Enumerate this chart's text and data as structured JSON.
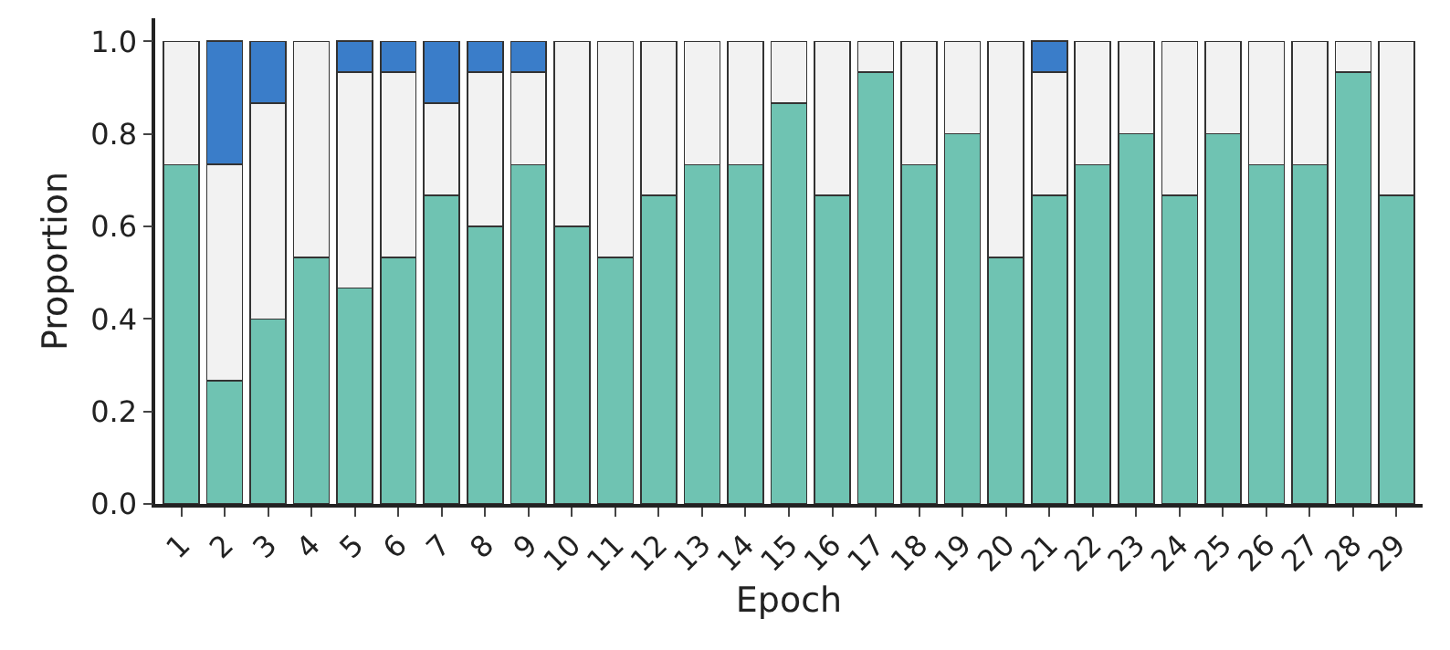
{
  "chart_data": {
    "type": "bar",
    "stacked": true,
    "xlabel": "Epoch",
    "ylabel": "Proportion",
    "categories": [
      "1",
      "2",
      "3",
      "4",
      "5",
      "6",
      "7",
      "8",
      "9",
      "10",
      "11",
      "12",
      "13",
      "14",
      "15",
      "16",
      "17",
      "18",
      "19",
      "20",
      "21",
      "22",
      "23",
      "24",
      "25",
      "26",
      "27",
      "28",
      "29"
    ],
    "series": [
      {
        "color": "#6fc3b2",
        "values": [
          0.733,
          0.267,
          0.4,
          0.533,
          0.467,
          0.533,
          0.667,
          0.6,
          0.733,
          0.6,
          0.533,
          0.667,
          0.733,
          0.733,
          0.867,
          0.667,
          0.933,
          0.733,
          0.8,
          0.533,
          0.667,
          0.733,
          0.8,
          0.667,
          0.8,
          0.733,
          0.733,
          0.933,
          0.667
        ]
      },
      {
        "color": "#f2f2f2",
        "values": [
          0.267,
          0.467,
          0.467,
          0.467,
          0.467,
          0.4,
          0.2,
          0.333,
          0.2,
          0.4,
          0.467,
          0.333,
          0.267,
          0.267,
          0.133,
          0.333,
          0.067,
          0.267,
          0.2,
          0.467,
          0.267,
          0.267,
          0.2,
          0.333,
          0.2,
          0.267,
          0.267,
          0.067,
          0.333
        ]
      },
      {
        "color": "#3a7dc9",
        "values": [
          null,
          0.267,
          0.133,
          null,
          0.067,
          0.067,
          0.133,
          0.067,
          0.067,
          null,
          null,
          null,
          null,
          null,
          null,
          null,
          null,
          null,
          null,
          null,
          0.067,
          null,
          null,
          null,
          null,
          null,
          null,
          null,
          null
        ]
      }
    ],
    "ylim": [
      0,
      1.05
    ],
    "yticks": [
      {
        "value": 0,
        "label": "0.0"
      },
      {
        "value": 0.2,
        "label": "0.2"
      },
      {
        "value": 0.4,
        "label": "0.4"
      },
      {
        "value": 0.6,
        "label": "0.6"
      },
      {
        "value": 0.8,
        "label": "0.8"
      },
      {
        "value": 1,
        "label": "1.0"
      }
    ],
    "grid": false
  }
}
